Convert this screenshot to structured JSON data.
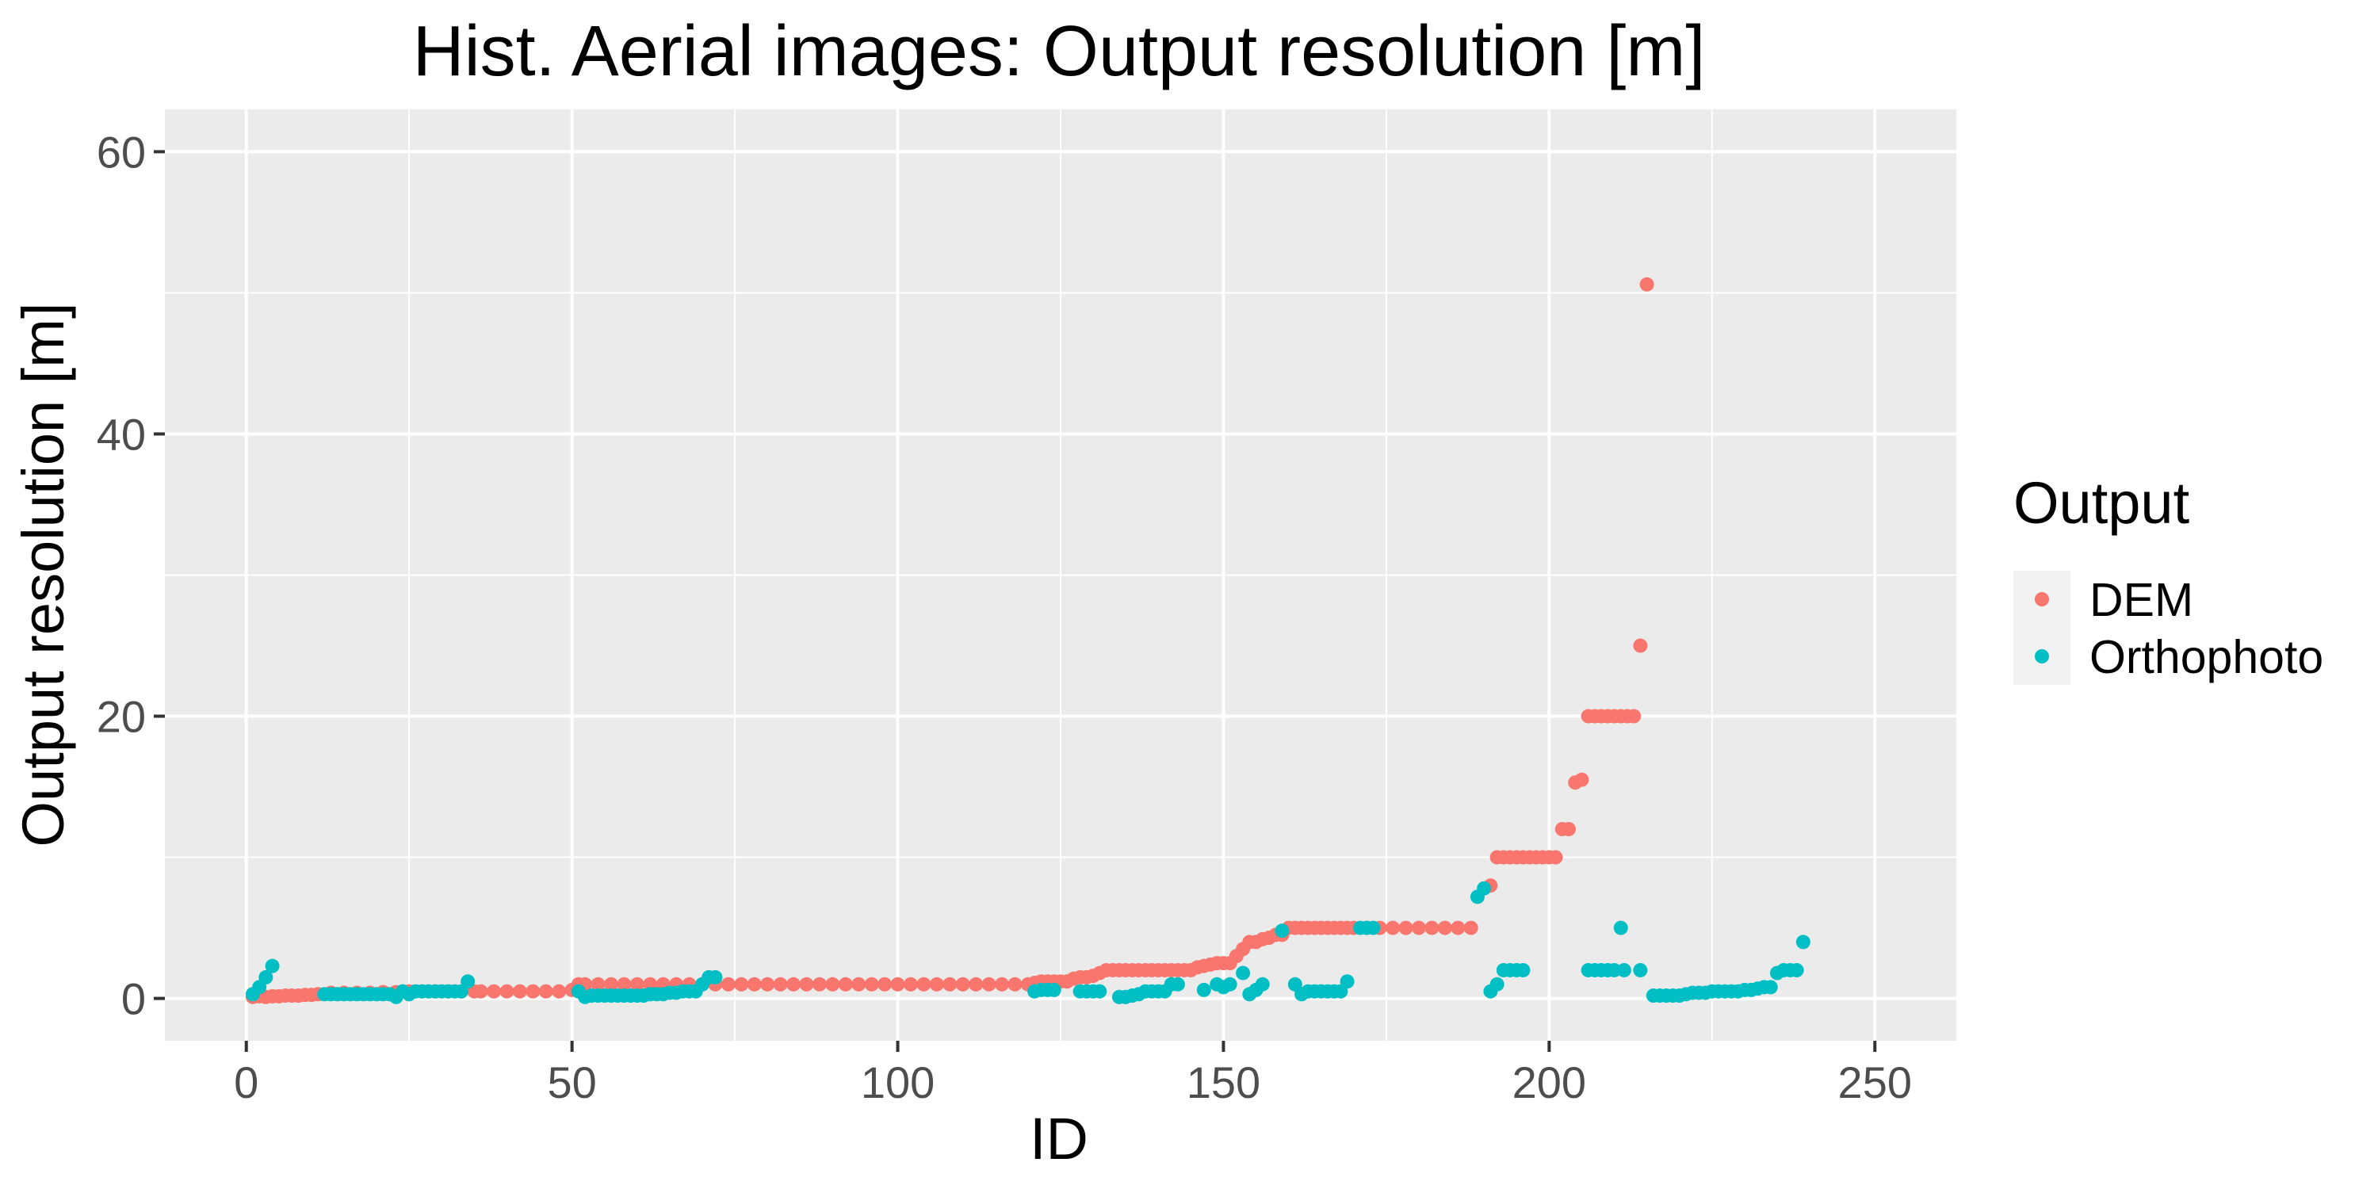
{
  "chart_data": {
    "type": "scatter",
    "title": "Hist. Aerial images: Output resolution [m]",
    "xlabel": "ID",
    "ylabel": "Output resolution [m]",
    "xlim": [
      -12.5,
      262.5
    ],
    "ylim": [
      -3,
      63
    ],
    "xticks": [
      0,
      50,
      100,
      150,
      200,
      250
    ],
    "xtick_labels": [
      "0",
      "50",
      "100",
      "150",
      "200",
      "250"
    ],
    "yticks": [
      0,
      20,
      40,
      60
    ],
    "ytick_labels": [
      "0",
      "20",
      "40",
      "60"
    ],
    "grid": true,
    "legend": {
      "title": "Output",
      "position": "right"
    },
    "series": [
      {
        "name": "DEM",
        "color": "#F8766D",
        "points": [
          [
            1,
            0.1
          ],
          [
            2,
            0.15
          ],
          [
            3,
            0.1
          ],
          [
            4,
            0.15
          ],
          [
            5,
            0.15
          ],
          [
            6,
            0.2
          ],
          [
            7,
            0.2
          ],
          [
            8,
            0.2
          ],
          [
            9,
            0.25
          ],
          [
            10,
            0.25
          ],
          [
            11,
            0.3
          ],
          [
            13,
            0.4
          ],
          [
            15,
            0.4
          ],
          [
            17,
            0.4
          ],
          [
            19,
            0.4
          ],
          [
            21,
            0.45
          ],
          [
            23,
            0.45
          ],
          [
            25,
            0.5
          ],
          [
            27,
            0.5
          ],
          [
            29,
            0.5
          ],
          [
            31,
            0.5
          ],
          [
            33,
            0.5
          ],
          [
            35,
            0.5
          ],
          [
            36,
            0.5
          ],
          [
            38,
            0.5
          ],
          [
            40,
            0.5
          ],
          [
            42,
            0.5
          ],
          [
            44,
            0.5
          ],
          [
            46,
            0.5
          ],
          [
            48,
            0.5
          ],
          [
            50,
            0.6
          ],
          [
            51,
            1
          ],
          [
            52,
            1
          ],
          [
            54,
            1
          ],
          [
            56,
            1
          ],
          [
            58,
            1
          ],
          [
            60,
            1
          ],
          [
            62,
            1
          ],
          [
            64,
            1
          ],
          [
            66,
            1
          ],
          [
            68,
            1
          ],
          [
            70,
            1
          ],
          [
            72,
            1
          ],
          [
            74,
            1
          ],
          [
            76,
            1
          ],
          [
            78,
            1
          ],
          [
            80,
            1
          ],
          [
            82,
            1
          ],
          [
            84,
            1
          ],
          [
            86,
            1
          ],
          [
            88,
            1
          ],
          [
            90,
            1
          ],
          [
            92,
            1
          ],
          [
            94,
            1
          ],
          [
            96,
            1
          ],
          [
            98,
            1
          ],
          [
            100,
            1
          ],
          [
            102,
            1
          ],
          [
            104,
            1
          ],
          [
            106,
            1
          ],
          [
            108,
            1
          ],
          [
            110,
            1
          ],
          [
            112,
            1
          ],
          [
            114,
            1
          ],
          [
            116,
            1
          ],
          [
            118,
            1
          ],
          [
            120,
            1
          ],
          [
            121,
            1.1
          ],
          [
            122,
            1.2
          ],
          [
            123,
            1.2
          ],
          [
            124,
            1.2
          ],
          [
            125,
            1.2
          ],
          [
            126,
            1.2
          ],
          [
            127,
            1.4
          ],
          [
            128,
            1.5
          ],
          [
            129,
            1.5
          ],
          [
            130,
            1.6
          ],
          [
            131,
            1.8
          ],
          [
            132,
            2
          ],
          [
            133,
            2
          ],
          [
            134,
            2
          ],
          [
            135,
            2
          ],
          [
            136,
            2
          ],
          [
            137,
            2
          ],
          [
            138,
            2
          ],
          [
            139,
            2
          ],
          [
            140,
            2
          ],
          [
            141,
            2
          ],
          [
            142,
            2
          ],
          [
            143,
            2
          ],
          [
            144,
            2
          ],
          [
            145,
            2
          ],
          [
            146,
            2.2
          ],
          [
            147,
            2.3
          ],
          [
            148,
            2.4
          ],
          [
            149,
            2.5
          ],
          [
            150,
            2.5
          ],
          [
            151,
            2.5
          ],
          [
            152,
            3
          ],
          [
            153,
            3.5
          ],
          [
            154,
            4
          ],
          [
            155,
            4
          ],
          [
            156,
            4.2
          ],
          [
            157,
            4.3
          ],
          [
            158,
            4.5
          ],
          [
            159,
            4.5
          ],
          [
            160,
            5
          ],
          [
            161,
            5
          ],
          [
            162,
            5
          ],
          [
            163,
            5
          ],
          [
            164,
            5
          ],
          [
            165,
            5
          ],
          [
            166,
            5
          ],
          [
            167,
            5
          ],
          [
            168,
            5
          ],
          [
            169,
            5
          ],
          [
            170,
            5
          ],
          [
            172,
            5
          ],
          [
            174,
            5
          ],
          [
            176,
            5
          ],
          [
            178,
            5
          ],
          [
            180,
            5
          ],
          [
            182,
            5
          ],
          [
            184,
            5
          ],
          [
            186,
            5
          ],
          [
            188,
            5
          ],
          [
            191,
            8
          ],
          [
            192,
            10
          ],
          [
            193,
            10
          ],
          [
            194,
            10
          ],
          [
            195,
            10
          ],
          [
            196,
            10
          ],
          [
            197,
            10
          ],
          [
            198,
            10
          ],
          [
            199,
            10
          ],
          [
            200,
            10
          ],
          [
            201,
            10
          ],
          [
            202,
            12
          ],
          [
            203,
            12
          ],
          [
            204,
            15.3
          ],
          [
            205,
            15.5
          ],
          [
            206,
            20
          ],
          [
            207,
            20
          ],
          [
            208,
            20
          ],
          [
            209,
            20
          ],
          [
            210,
            20
          ],
          [
            211,
            20
          ],
          [
            212,
            20
          ],
          [
            213,
            20
          ],
          [
            214,
            25
          ],
          [
            215,
            50.6
          ]
        ]
      },
      {
        "name": "Orthophoto",
        "color": "#00BFC4",
        "points": [
          [
            1,
            0.3
          ],
          [
            2,
            0.8
          ],
          [
            3,
            1.5
          ],
          [
            4,
            2.3
          ],
          [
            12,
            0.3
          ],
          [
            13,
            0.3
          ],
          [
            14,
            0.3
          ],
          [
            15,
            0.3
          ],
          [
            16,
            0.3
          ],
          [
            17,
            0.3
          ],
          [
            18,
            0.3
          ],
          [
            19,
            0.3
          ],
          [
            20,
            0.3
          ],
          [
            21,
            0.3
          ],
          [
            22,
            0.3
          ],
          [
            23,
            0.1
          ],
          [
            24,
            0.5
          ],
          [
            25,
            0.3
          ],
          [
            26,
            0.5
          ],
          [
            27,
            0.5
          ],
          [
            28,
            0.5
          ],
          [
            29,
            0.5
          ],
          [
            30,
            0.5
          ],
          [
            31,
            0.5
          ],
          [
            32,
            0.5
          ],
          [
            33,
            0.5
          ],
          [
            34,
            1.2
          ],
          [
            51,
            0.5
          ],
          [
            52,
            0.1
          ],
          [
            53,
            0.2
          ],
          [
            54,
            0.2
          ],
          [
            55,
            0.2
          ],
          [
            56,
            0.2
          ],
          [
            57,
            0.2
          ],
          [
            58,
            0.2
          ],
          [
            59,
            0.2
          ],
          [
            60,
            0.2
          ],
          [
            61,
            0.2
          ],
          [
            62,
            0.3
          ],
          [
            63,
            0.3
          ],
          [
            64,
            0.3
          ],
          [
            65,
            0.4
          ],
          [
            66,
            0.4
          ],
          [
            67,
            0.5
          ],
          [
            68,
            0.5
          ],
          [
            69,
            0.5
          ],
          [
            70,
            1
          ],
          [
            71,
            1.5
          ],
          [
            72,
            1.5
          ],
          [
            121,
            0.5
          ],
          [
            122,
            0.6
          ],
          [
            123,
            0.6
          ],
          [
            124,
            0.6
          ],
          [
            128,
            0.5
          ],
          [
            129,
            0.5
          ],
          [
            130,
            0.5
          ],
          [
            131,
            0.5
          ],
          [
            134,
            0.1
          ],
          [
            135,
            0.1
          ],
          [
            136,
            0.2
          ],
          [
            137,
            0.3
          ],
          [
            138,
            0.5
          ],
          [
            139,
            0.5
          ],
          [
            140,
            0.5
          ],
          [
            141,
            0.5
          ],
          [
            142,
            1
          ],
          [
            143,
            1
          ],
          [
            147,
            0.6
          ],
          [
            149,
            1
          ],
          [
            150,
            0.8
          ],
          [
            151,
            1
          ],
          [
            153,
            1.8
          ],
          [
            154,
            0.3
          ],
          [
            155,
            0.6
          ],
          [
            156,
            1
          ],
          [
            159,
            4.8
          ],
          [
            161,
            1
          ],
          [
            162,
            0.3
          ],
          [
            163,
            0.5
          ],
          [
            164,
            0.5
          ],
          [
            165,
            0.5
          ],
          [
            166,
            0.5
          ],
          [
            167,
            0.5
          ],
          [
            168,
            0.5
          ],
          [
            169,
            1.2
          ],
          [
            171,
            5
          ],
          [
            172,
            5
          ],
          [
            173,
            5
          ],
          [
            189,
            7.2
          ],
          [
            190,
            7.8
          ],
          [
            191,
            0.5
          ],
          [
            192,
            1
          ],
          [
            193,
            2
          ],
          [
            194,
            2
          ],
          [
            195,
            2
          ],
          [
            196,
            2
          ],
          [
            211,
            5
          ],
          [
            206,
            2
          ],
          [
            207,
            2
          ],
          [
            208,
            2
          ],
          [
            209,
            2
          ],
          [
            210,
            2
          ],
          [
            211.5,
            2
          ],
          [
            214,
            2
          ],
          [
            216,
            0.2
          ],
          [
            217,
            0.2
          ],
          [
            218,
            0.2
          ],
          [
            219,
            0.2
          ],
          [
            220,
            0.2
          ],
          [
            221,
            0.3
          ],
          [
            222,
            0.4
          ],
          [
            223,
            0.4
          ],
          [
            224,
            0.4
          ],
          [
            225,
            0.5
          ],
          [
            226,
            0.5
          ],
          [
            227,
            0.5
          ],
          [
            228,
            0.5
          ],
          [
            229,
            0.5
          ],
          [
            230,
            0.6
          ],
          [
            231,
            0.6
          ],
          [
            232,
            0.7
          ],
          [
            233,
            0.8
          ],
          [
            234,
            0.8
          ],
          [
            235,
            1.8
          ],
          [
            236,
            2
          ],
          [
            237,
            2
          ],
          [
            238,
            2
          ],
          [
            239,
            4
          ]
        ]
      }
    ]
  }
}
